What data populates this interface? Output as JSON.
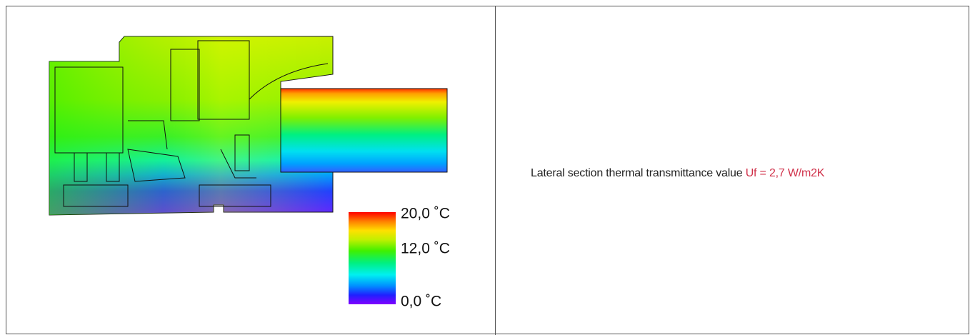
{
  "legend": {
    "max": "20,0 ˚C",
    "mid": "12,0 ˚C",
    "min": "0,0 ˚C"
  },
  "description": {
    "text": "Lateral section thermal transmittance value",
    "highlight": "Uf = 2,7 W/m2K"
  }
}
